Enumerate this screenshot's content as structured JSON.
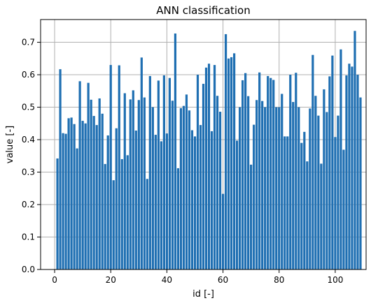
{
  "colors": {
    "bar": "#1f6fb2",
    "grid": "#b0b0b0",
    "axes": "#000000",
    "background": "#ffffff"
  },
  "chart_data": {
    "type": "bar",
    "title": "ANN classification",
    "xlabel": "id [-]",
    "ylabel": "value [-]",
    "xlim": [
      -5,
      111
    ],
    "ylim": [
      0,
      0.77
    ],
    "xticks": [
      0,
      20,
      40,
      60,
      80,
      100
    ],
    "yticks": [
      0.0,
      0.1,
      0.2,
      0.3,
      0.4,
      0.5,
      0.6,
      0.7
    ],
    "ytick_labels": [
      "0.0",
      "0.1",
      "0.2",
      "0.3",
      "0.4",
      "0.5",
      "0.6",
      "0.7"
    ],
    "grid": true,
    "x": [
      1,
      2,
      3,
      4,
      5,
      6,
      7,
      8,
      9,
      10,
      11,
      12,
      13,
      14,
      15,
      16,
      17,
      18,
      19,
      20,
      21,
      22,
      23,
      24,
      25,
      26,
      27,
      28,
      29,
      30,
      31,
      32,
      33,
      34,
      35,
      36,
      37,
      38,
      39,
      40,
      41,
      42,
      43,
      44,
      45,
      46,
      47,
      48,
      49,
      50,
      51,
      52,
      53,
      54,
      55,
      56,
      57,
      58,
      59,
      60,
      61,
      62,
      63,
      64,
      65,
      66,
      67,
      68,
      69,
      70,
      71,
      72,
      73,
      74,
      75,
      76,
      77,
      78,
      79,
      80,
      81,
      82,
      83,
      84,
      85,
      86,
      87,
      88,
      89,
      90,
      91,
      92,
      93,
      94,
      95,
      96,
      97,
      98,
      99,
      100,
      101,
      102,
      103,
      104,
      105,
      106,
      107,
      108,
      109
    ],
    "values": [
      0.342,
      0.617,
      0.42,
      0.418,
      0.466,
      0.468,
      0.448,
      0.373,
      0.58,
      0.458,
      0.45,
      0.575,
      0.523,
      0.473,
      0.445,
      0.527,
      0.48,
      0.325,
      0.413,
      0.63,
      0.275,
      0.435,
      0.629,
      0.34,
      0.543,
      0.352,
      0.524,
      0.552,
      0.428,
      0.522,
      0.653,
      0.53,
      0.279,
      0.596,
      0.5,
      0.415,
      0.582,
      0.395,
      0.598,
      0.419,
      0.59,
      0.52,
      0.727,
      0.312,
      0.497,
      0.504,
      0.539,
      0.49,
      0.429,
      0.41,
      0.6,
      0.445,
      0.572,
      0.622,
      0.634,
      0.426,
      0.63,
      0.535,
      0.486,
      0.233,
      0.725,
      0.65,
      0.654,
      0.666,
      0.397,
      0.5,
      0.583,
      0.605,
      0.534,
      0.323,
      0.446,
      0.522,
      0.607,
      0.519,
      0.5,
      0.596,
      0.59,
      0.584,
      0.5,
      0.5,
      0.541,
      0.41,
      0.41,
      0.6,
      0.516,
      0.606,
      0.5,
      0.39,
      0.424,
      0.333,
      0.496,
      0.661,
      0.535,
      0.474,
      0.326,
      0.555,
      0.485,
      0.595,
      0.659,
      0.408,
      0.474,
      0.678,
      0.369,
      0.598,
      0.634,
      0.625,
      0.735,
      0.6,
      0.53
    ]
  }
}
